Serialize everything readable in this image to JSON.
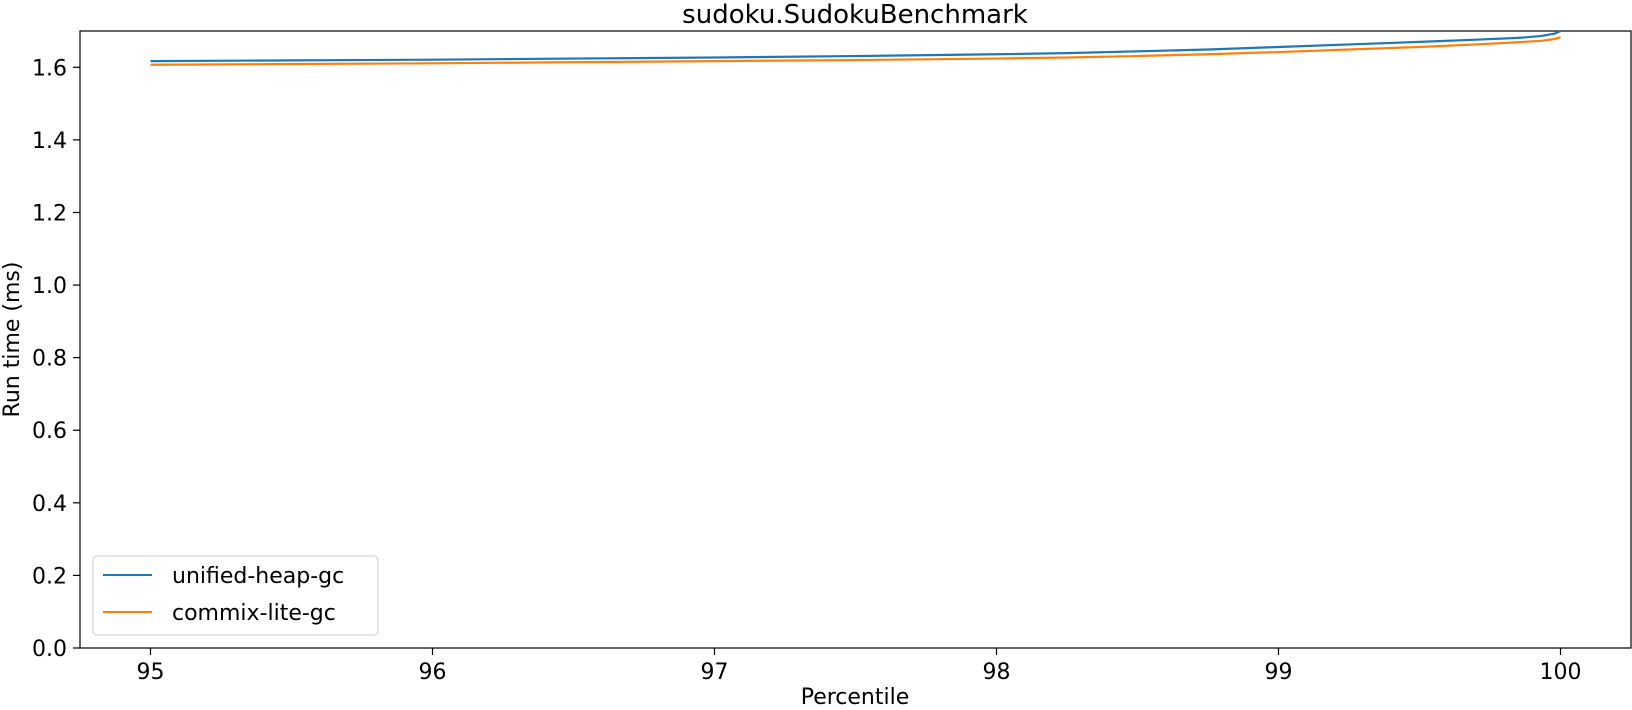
{
  "chart_data": {
    "type": "line",
    "title": "sudoku.SudokuBenchmark",
    "xlabel": "Percentile",
    "ylabel": "Run time (ms)",
    "xlim": [
      94.75,
      100.25
    ],
    "ylim": [
      0.0,
      1.7
    ],
    "xticks": [
      95,
      96,
      97,
      98,
      99,
      100
    ],
    "xtick_labels": [
      "95",
      "96",
      "97",
      "98",
      "99",
      "100"
    ],
    "yticks": [
      0.0,
      0.2,
      0.4,
      0.6,
      0.8,
      1.0,
      1.2,
      1.4,
      1.6
    ],
    "ytick_labels": [
      "0.0",
      "0.2",
      "0.4",
      "0.6",
      "0.8",
      "1.0",
      "1.2",
      "1.4",
      "1.6"
    ],
    "grid": false,
    "legend_position": "lower-left",
    "series": [
      {
        "name": "unified-heap-gc",
        "color": "#1f77b4",
        "x": [
          95.0,
          95.5,
          96.0,
          96.5,
          97.0,
          97.5,
          98.0,
          98.25,
          98.5,
          98.75,
          99.0,
          99.25,
          99.5,
          99.7,
          99.85,
          99.93,
          99.98,
          100.0
        ],
        "y": [
          1.617,
          1.619,
          1.621,
          1.624,
          1.627,
          1.631,
          1.636,
          1.639,
          1.644,
          1.649,
          1.656,
          1.663,
          1.67,
          1.676,
          1.681,
          1.686,
          1.693,
          1.7
        ]
      },
      {
        "name": "commix-lite-gc",
        "color": "#ff7f0e",
        "x": [
          95.0,
          95.5,
          96.0,
          96.5,
          97.0,
          97.5,
          98.0,
          98.25,
          98.5,
          98.75,
          99.0,
          99.25,
          99.5,
          99.7,
          99.85,
          99.93,
          99.98,
          100.0
        ],
        "y": [
          1.607,
          1.609,
          1.611,
          1.614,
          1.617,
          1.62,
          1.624,
          1.627,
          1.631,
          1.636,
          1.642,
          1.649,
          1.656,
          1.663,
          1.669,
          1.673,
          1.678,
          1.683
        ]
      }
    ]
  }
}
